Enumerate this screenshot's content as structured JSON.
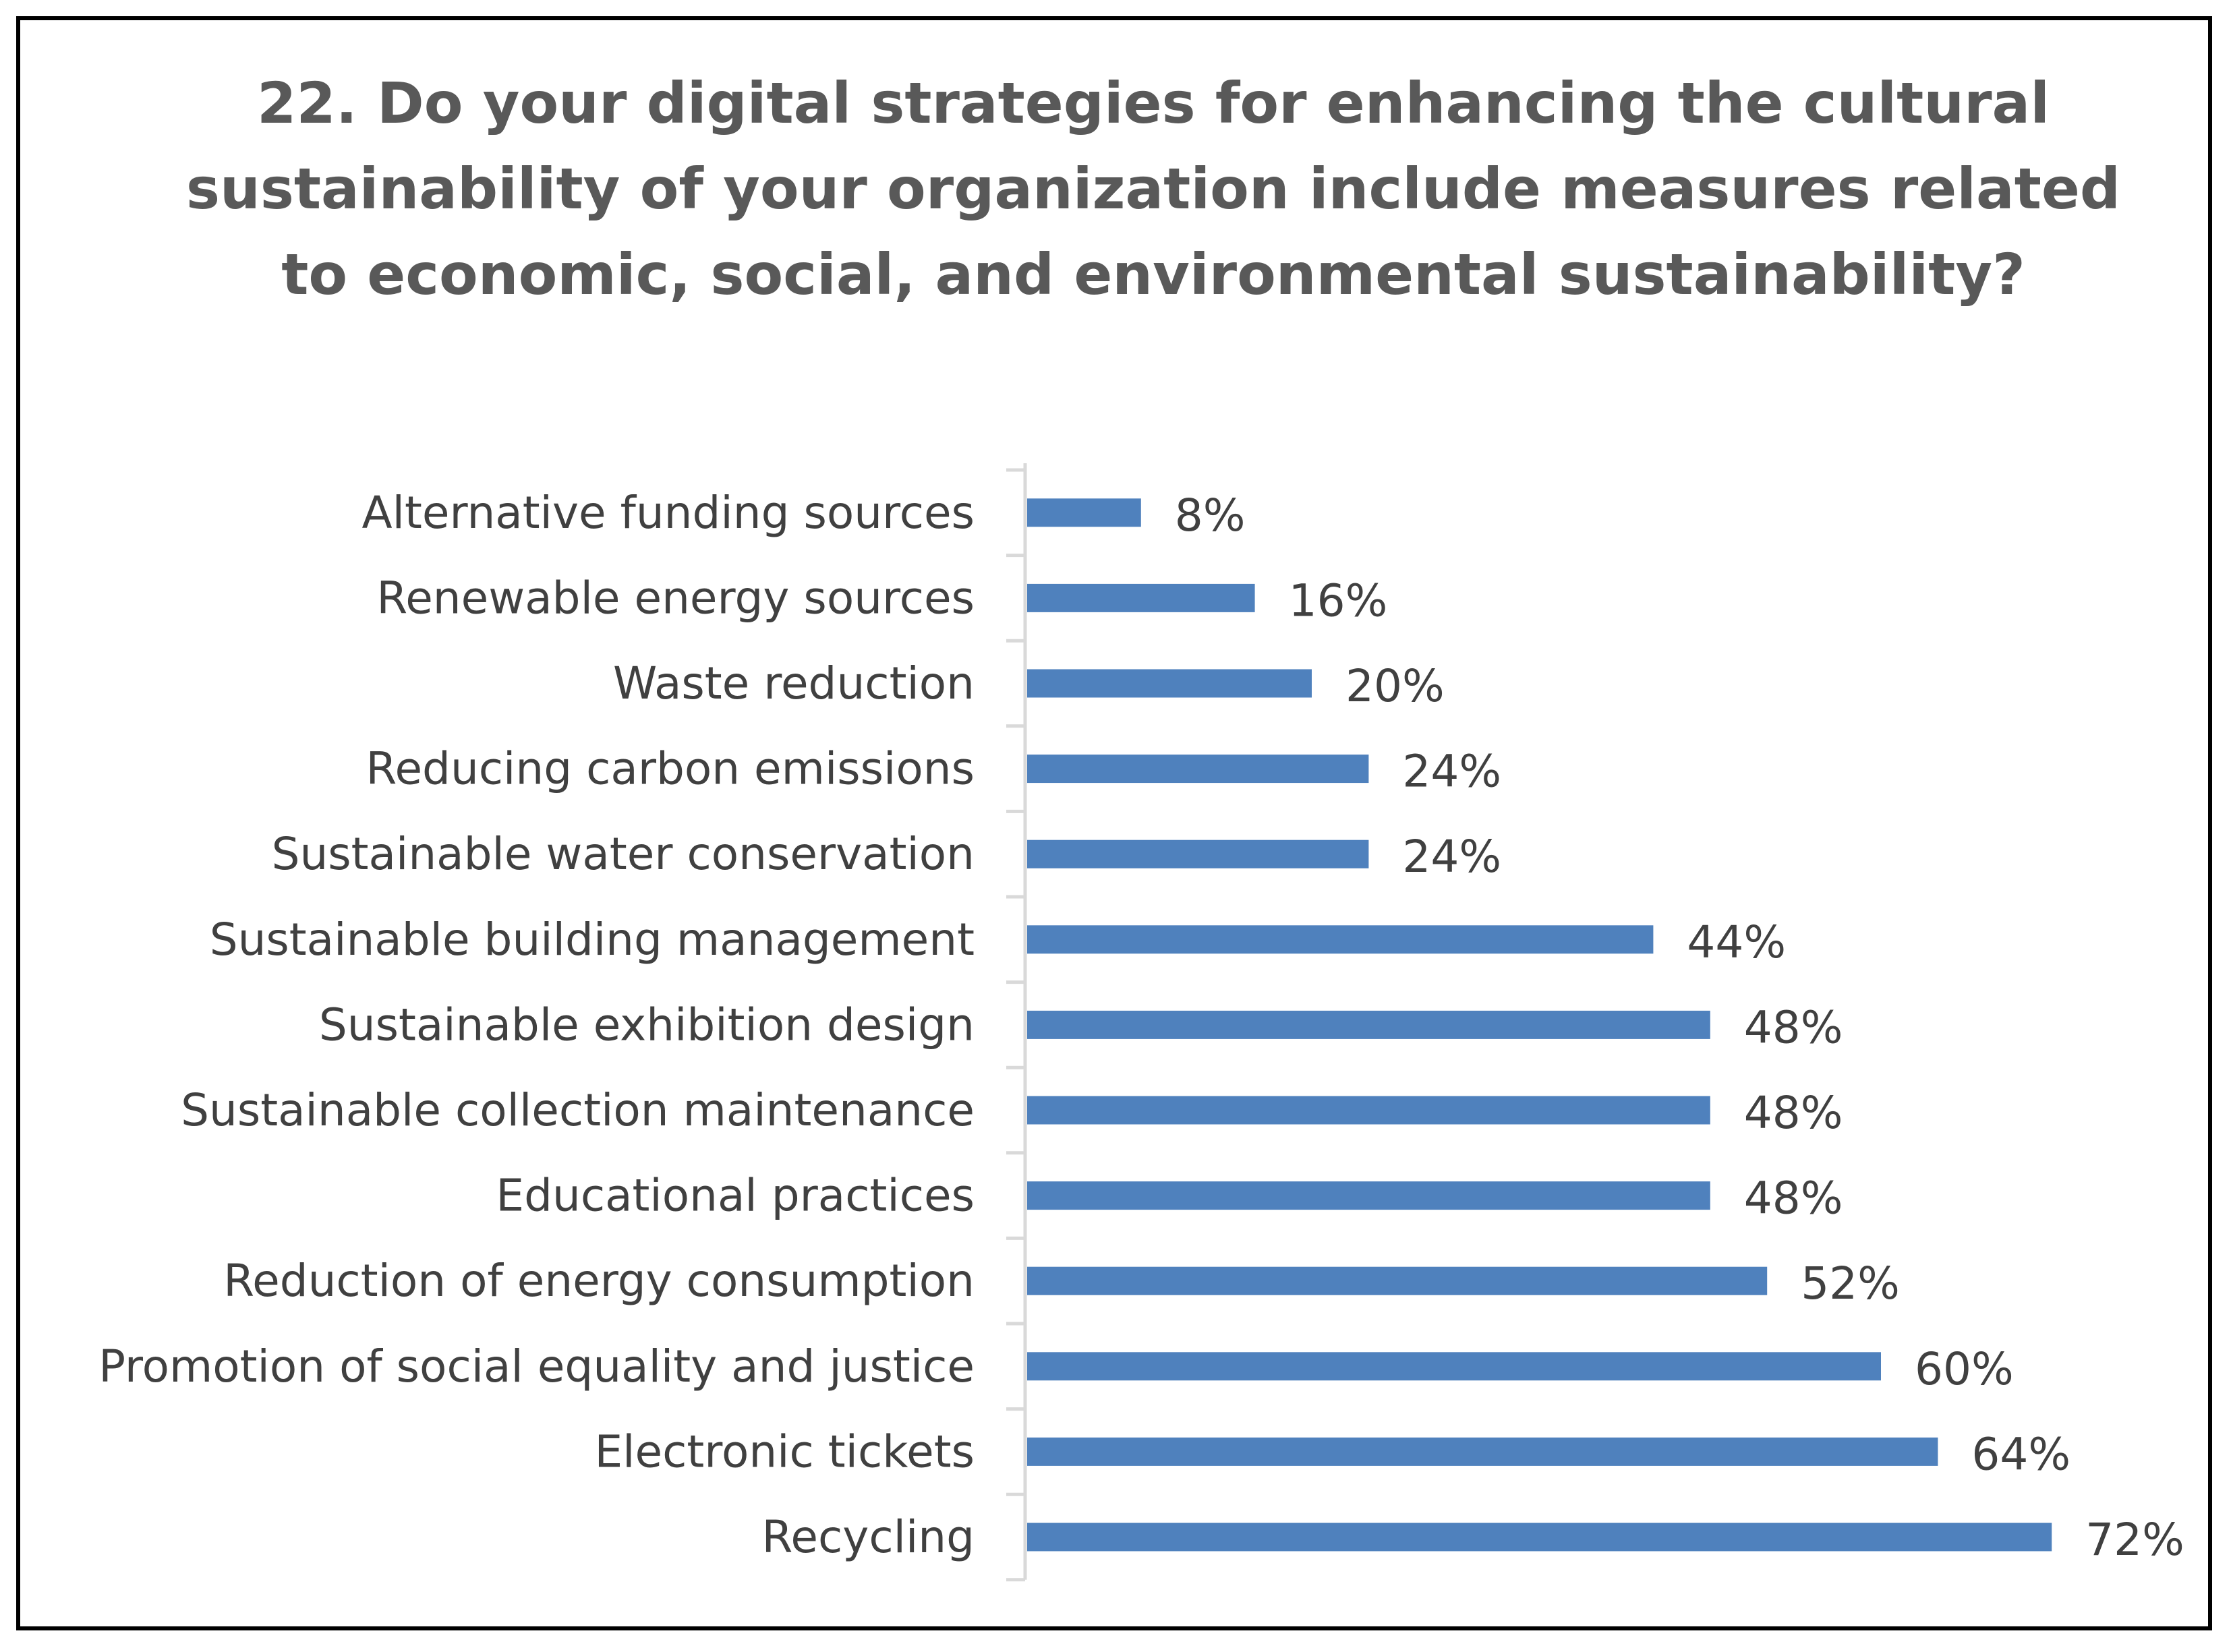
{
  "chart_data": {
    "type": "bar",
    "orientation": "horizontal",
    "title": "22. Do your digital strategies for enhancing the cultural sustainability of your organization include measures related to economic, social, and environmental sustainability?",
    "categories": [
      "Alternative funding sources",
      "Renewable energy sources",
      "Waste reduction",
      "Reducing carbon emissions",
      "Sustainable water conservation",
      "Sustainable building management",
      "Sustainable exhibition design",
      "Sustainable collection maintenance",
      "Educational practices",
      "Reduction of energy consumption",
      "Promotion of social equality and justice",
      "Electronic tickets",
      "Recycling"
    ],
    "values": [
      8,
      16,
      20,
      24,
      24,
      44,
      48,
      48,
      48,
      52,
      60,
      64,
      72
    ],
    "data_labels": [
      "8%",
      "16%",
      "20%",
      "24%",
      "24%",
      "44%",
      "48%",
      "48%",
      "48%",
      "52%",
      "60%",
      "64%",
      "72%"
    ],
    "value_unit": "%",
    "xlim": [
      0,
      80
    ],
    "xlabel": "",
    "ylabel": "",
    "grid": false,
    "legend": "none",
    "bar_color": "#4F81BD",
    "axis_color": "#D9D9D9",
    "text_color": "#404040",
    "title_color": "#595959"
  }
}
